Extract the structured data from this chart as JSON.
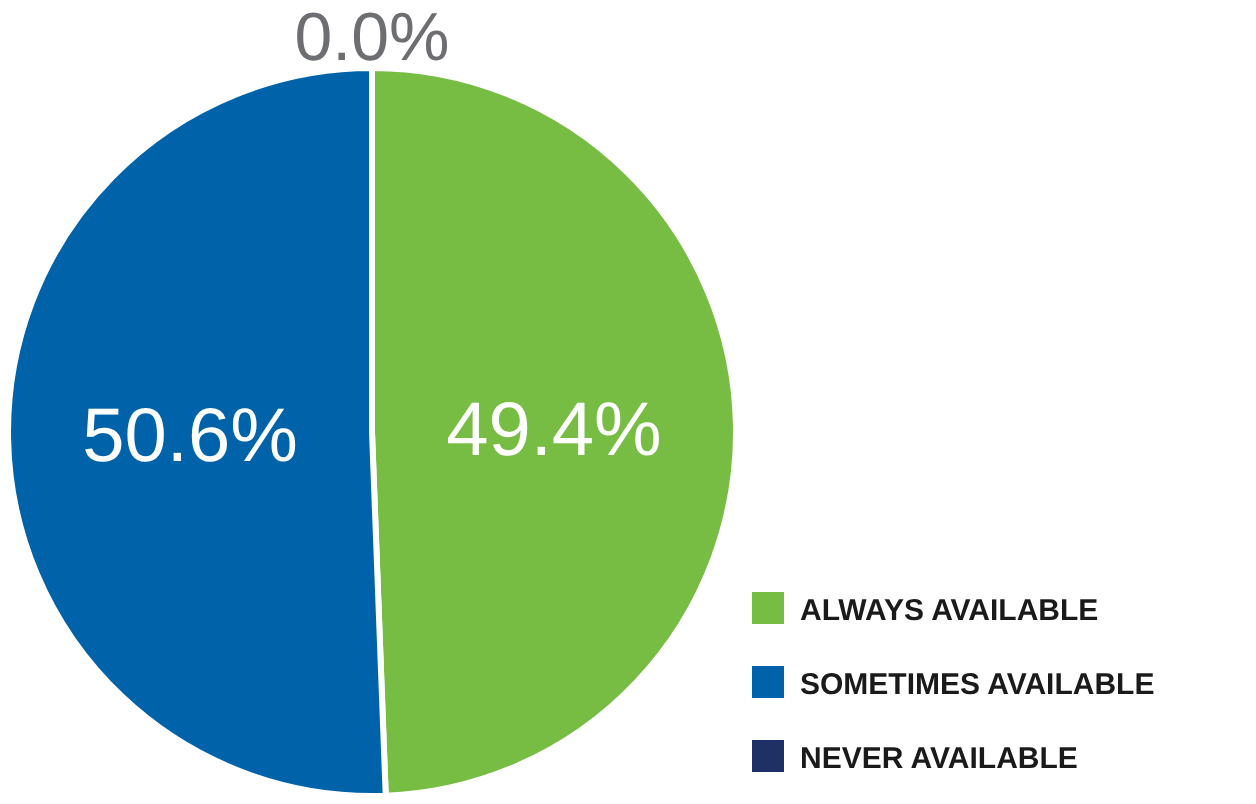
{
  "chart_data": {
    "type": "pie",
    "categories": [
      "ALWAYS AVAILABLE",
      "SOMETIMES AVAILABLE",
      "NEVER AVAILABLE"
    ],
    "values": [
      49.4,
      50.6,
      0.0
    ],
    "colors": [
      "#77bc43",
      "#0063a9",
      "#1f3064"
    ],
    "value_labels": [
      "49.4%",
      "50.6%",
      "0.0%"
    ],
    "legend": "bottom right"
  }
}
